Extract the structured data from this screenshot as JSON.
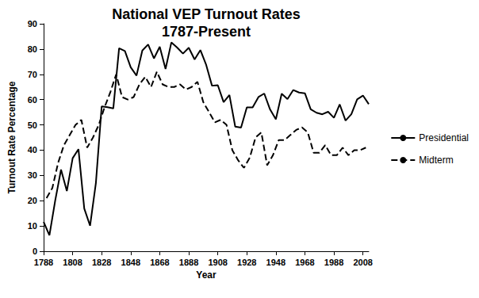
{
  "chart_data": {
    "type": "line",
    "title": "National VEP Turnout Rates\n1787-Present",
    "x_label": "Year",
    "y_label": "Turnout Rate Percentage",
    "xlim": [
      1788,
      2012
    ],
    "xticks": [
      1788,
      1808,
      1828,
      1848,
      1868,
      1888,
      1908,
      1928,
      1948,
      1968,
      1988,
      2008
    ],
    "ylim": [
      0,
      90
    ],
    "yticks": [
      0,
      10,
      20,
      30,
      40,
      50,
      60,
      70,
      80,
      90
    ],
    "grid": false,
    "legend": "right",
    "series": [
      {
        "name": "Presidential",
        "color": "#000000",
        "line_style": "solid",
        "x": [
          1788,
          1792,
          1796,
          1800,
          1804,
          1808,
          1812,
          1816,
          1820,
          1824,
          1828,
          1832,
          1836,
          1840,
          1844,
          1848,
          1852,
          1856,
          1860,
          1864,
          1868,
          1872,
          1876,
          1880,
          1884,
          1888,
          1892,
          1896,
          1900,
          1904,
          1908,
          1912,
          1916,
          1920,
          1924,
          1928,
          1932,
          1936,
          1940,
          1944,
          1948,
          1952,
          1956,
          1960,
          1964,
          1968,
          1972,
          1976,
          1980,
          1984,
          1988,
          1992,
          1996,
          2000,
          2004,
          2008,
          2012
        ],
        "values": [
          11.6,
          6.3,
          20.1,
          32.3,
          23.8,
          36.8,
          40.4,
          16.9,
          10.1,
          26.9,
          57.3,
          57.0,
          56.5,
          80.3,
          79.2,
          72.8,
          69.5,
          79.4,
          81.8,
          76.3,
          80.9,
          72.1,
          82.6,
          80.6,
          78.2,
          80.5,
          75.9,
          79.6,
          73.7,
          65.5,
          65.7,
          59.0,
          61.8,
          49.3,
          48.9,
          56.9,
          56.9,
          61.0,
          62.4,
          56.1,
          52.2,
          62.3,
          60.2,
          63.8,
          62.8,
          62.5,
          56.2,
          54.8,
          54.2,
          55.2,
          52.8,
          58.1,
          51.7,
          54.2,
          60.1,
          61.6,
          58.2
        ]
      },
      {
        "name": "Midterm",
        "color": "#000000",
        "line_style": "dashed",
        "x": [
          1790,
          1794,
          1798,
          1802,
          1806,
          1810,
          1814,
          1818,
          1822,
          1826,
          1830,
          1834,
          1838,
          1842,
          1846,
          1850,
          1854,
          1858,
          1862,
          1866,
          1870,
          1874,
          1878,
          1882,
          1886,
          1890,
          1894,
          1898,
          1902,
          1906,
          1910,
          1914,
          1918,
          1922,
          1926,
          1930,
          1934,
          1938,
          1942,
          1946,
          1950,
          1954,
          1958,
          1962,
          1966,
          1970,
          1974,
          1978,
          1982,
          1986,
          1990,
          1994,
          1998,
          2002,
          2006,
          2010
        ],
        "values": [
          21,
          25,
          35,
          42,
          46,
          50,
          52,
          41,
          45,
          50,
          57,
          63,
          70,
          61,
          60,
          61,
          66,
          69,
          65,
          71,
          66,
          65,
          65,
          66,
          64,
          65,
          67,
          59,
          55,
          51,
          52,
          50,
          40,
          36,
          33,
          37,
          45,
          47,
          34,
          38,
          44,
          44,
          46,
          48,
          49,
          47,
          39,
          39,
          42,
          38,
          38,
          41,
          38,
          40,
          40,
          41
        ]
      }
    ]
  }
}
